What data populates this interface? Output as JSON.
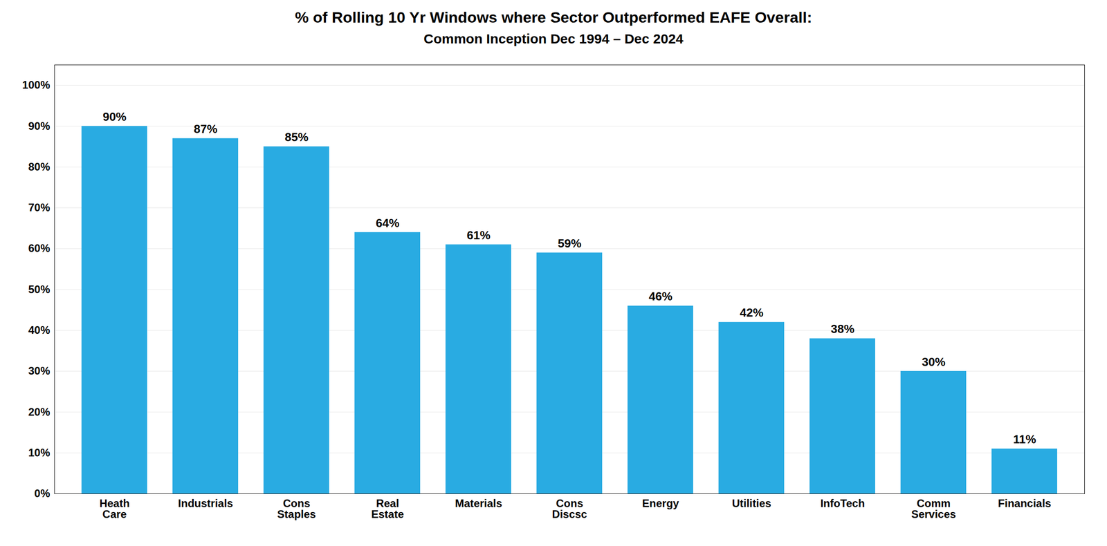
{
  "chart_data": {
    "type": "bar",
    "title": "% of Rolling 10 Yr Windows where Sector Outperformed EAFE Overall:",
    "subtitle": "Common Inception Dec 1994 – Dec 2024",
    "categories": [
      "Heath\nCare",
      "Industrials",
      "Cons\nStaples",
      "Real\nEstate",
      "Materials",
      "Cons\nDiscsc",
      "Energy",
      "Utilities",
      "InfoTech",
      "Comm\nServices",
      "Financials"
    ],
    "values": [
      90,
      87,
      85,
      64,
      61,
      59,
      46,
      42,
      38,
      30,
      11
    ],
    "value_labels": [
      "90%",
      "87%",
      "85%",
      "64%",
      "61%",
      "59%",
      "46%",
      "42%",
      "38%",
      "30%",
      "11%"
    ],
    "data_labels": true,
    "color": "#29ABE2",
    "ylim": [
      0,
      105
    ],
    "yticks": [
      {
        "value": 0,
        "label": "0%"
      },
      {
        "value": 10,
        "label": "10%"
      },
      {
        "value": 20,
        "label": "20%"
      },
      {
        "value": 30,
        "label": "30%"
      },
      {
        "value": 40,
        "label": "40%"
      },
      {
        "value": 50,
        "label": "50%"
      },
      {
        "value": 60,
        "label": "60%"
      },
      {
        "value": 70,
        "label": "70%"
      },
      {
        "value": 80,
        "label": "80%"
      },
      {
        "value": 90,
        "label": "90%"
      },
      {
        "value": 100,
        "label": "100%"
      }
    ],
    "grid": true
  }
}
